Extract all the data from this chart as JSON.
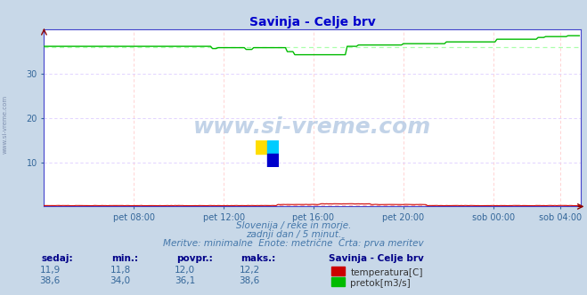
{
  "title": "Savinja - Celje brv",
  "title_color": "#0000cc",
  "bg_color": "#c8d8e8",
  "plot_bg_color": "#ffffff",
  "x_min": 0,
  "x_max": 287,
  "y_min": 0,
  "y_max": 40,
  "ytick_vals": [
    10,
    20,
    30
  ],
  "x_tick_labels": [
    "pet 08:00",
    "pet 12:00",
    "pet 16:00",
    "pet 20:00",
    "sob 00:00",
    "sob 04:00"
  ],
  "x_tick_positions": [
    48,
    96,
    144,
    192,
    240,
    276
  ],
  "watermark": "www.si-vreme.com",
  "sub_line1": "Slovenija / reke in morje.",
  "sub_line2": "zadnji dan / 5 minut.",
  "sub_line3": "Meritve: minimalne  Enote: metrične  Črta: prva meritev",
  "table_headers": [
    "sedaj:",
    "min.:",
    "povpr.:",
    "maks.:"
  ],
  "table_row1": [
    "11,9",
    "11,8",
    "12,0",
    "12,2"
  ],
  "table_row2": [
    "38,6",
    "34,0",
    "36,1",
    "38,6"
  ],
  "legend_title": "Savinja - Celje brv",
  "legend_items": [
    "temperatura[C]",
    "pretok[m3/s]"
  ],
  "legend_colors": [
    "#cc0000",
    "#00bb00"
  ],
  "temp_color": "#cc0000",
  "flow_color": "#00bb00",
  "avg_temp_color": "#ffaaaa",
  "avg_flow_color": "#aaffaa",
  "spine_color": "#4444cc",
  "grid_v_color": "#ffcccc",
  "grid_h_color": "#ddccff",
  "axis_label_color": "#336699"
}
